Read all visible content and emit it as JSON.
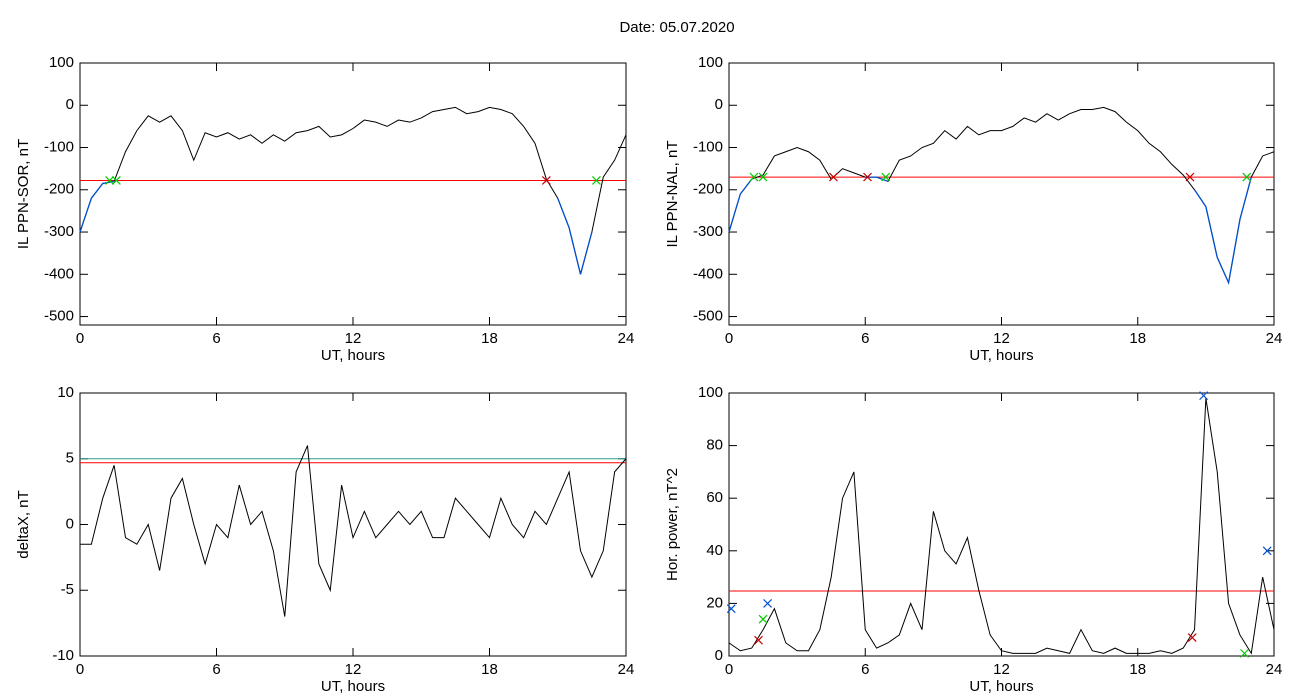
{
  "title": "Date:  05.07.2020",
  "chart_data": [
    {
      "type": "line",
      "xlabel": "UT, hours",
      "ylabel": "IL PPN-SOR, nT",
      "xlim": [
        0,
        24
      ],
      "xticks": [
        0,
        6,
        12,
        18,
        24
      ],
      "ylim": [
        -520,
        100
      ],
      "yticks": [
        100,
        0,
        -100,
        -200,
        -300,
        -400,
        -500
      ],
      "x": [
        0,
        0.5,
        1,
        1.5,
        2,
        2.5,
        3,
        3.5,
        4,
        4.5,
        5,
        5.5,
        6,
        6.5,
        7,
        7.5,
        8,
        8.5,
        9,
        9.5,
        10,
        10.5,
        11,
        11.5,
        12,
        12.5,
        13,
        13.5,
        14,
        14.5,
        15,
        15.5,
        16,
        16.5,
        17,
        17.5,
        18,
        18.5,
        19,
        19.5,
        20,
        20.5,
        21,
        21.5,
        22,
        22.5,
        23,
        23.5,
        24
      ],
      "series": [
        {
          "color": "#000000",
          "values": [
            -300,
            -220,
            -185,
            -180,
            -110,
            -60,
            -25,
            -40,
            -25,
            -60,
            -130,
            -65,
            -75,
            -65,
            -80,
            -70,
            -90,
            -70,
            -85,
            -65,
            -60,
            -50,
            -75,
            -70,
            -55,
            -35,
            -40,
            -50,
            -35,
            -40,
            -30,
            -15,
            -10,
            -5,
            -20,
            -15,
            -5,
            -10,
            -20,
            -50,
            -90,
            -175,
            -220,
            -290,
            -400,
            -300,
            -170,
            -130,
            -70
          ]
        }
      ],
      "threshold": {
        "value": -178,
        "color": "#ff0000",
        "below_color": "#0050d0"
      },
      "hlines": [
        {
          "value": -178,
          "color": "#ff0000"
        }
      ],
      "markers": [
        {
          "x": 1.3,
          "y": -178,
          "color": "#00cc00"
        },
        {
          "x": 1.6,
          "y": -178,
          "color": "#00cc00"
        },
        {
          "x": 20.5,
          "y": -178,
          "color": "#cc0000"
        },
        {
          "x": 22.7,
          "y": -178,
          "color": "#00cc00"
        }
      ]
    },
    {
      "type": "line",
      "xlabel": "UT, hours",
      "ylabel": "IL PPN-NAL, nT",
      "xlim": [
        0,
        24
      ],
      "xticks": [
        0,
        6,
        12,
        18,
        24
      ],
      "ylim": [
        -520,
        100
      ],
      "yticks": [
        100,
        0,
        -100,
        -200,
        -300,
        -400,
        -500
      ],
      "x": [
        0,
        0.5,
        1,
        1.5,
        2,
        2.5,
        3,
        3.5,
        4,
        4.5,
        5,
        5.5,
        6,
        6.5,
        7,
        7.5,
        8,
        8.5,
        9,
        9.5,
        10,
        10.5,
        11,
        11.5,
        12,
        12.5,
        13,
        13.5,
        14,
        14.5,
        15,
        15.5,
        16,
        16.5,
        17,
        17.5,
        18,
        18.5,
        19,
        19.5,
        20,
        20.5,
        21,
        21.5,
        22,
        22.5,
        23,
        23.5,
        24
      ],
      "series": [
        {
          "color": "#000000",
          "values": [
            -300,
            -210,
            -175,
            -165,
            -120,
            -110,
            -100,
            -110,
            -130,
            -175,
            -150,
            -160,
            -170,
            -170,
            -180,
            -130,
            -120,
            -100,
            -90,
            -60,
            -80,
            -50,
            -70,
            -60,
            -60,
            -50,
            -30,
            -40,
            -20,
            -35,
            -20,
            -10,
            -10,
            -5,
            -15,
            -40,
            -60,
            -90,
            -110,
            -140,
            -165,
            -200,
            -240,
            -360,
            -420,
            -270,
            -170,
            -120,
            -110
          ]
        }
      ],
      "threshold": {
        "value": -170,
        "color": "#ff0000",
        "below_color": "#0050d0"
      },
      "hlines": [
        {
          "value": -170,
          "color": "#ff0000"
        }
      ],
      "markers": [
        {
          "x": 1.1,
          "y": -170,
          "color": "#00cc00"
        },
        {
          "x": 1.5,
          "y": -170,
          "color": "#00cc00"
        },
        {
          "x": 4.6,
          "y": -170,
          "color": "#cc0000"
        },
        {
          "x": 6.1,
          "y": -170,
          "color": "#cc0000"
        },
        {
          "x": 6.9,
          "y": -170,
          "color": "#00cc00"
        },
        {
          "x": 20.3,
          "y": -170,
          "color": "#cc0000"
        },
        {
          "x": 22.8,
          "y": -170,
          "color": "#00cc00"
        }
      ]
    },
    {
      "type": "line",
      "xlabel": "UT, hours",
      "ylabel": "deltaX, nT",
      "xlim": [
        0,
        24
      ],
      "xticks": [
        0,
        6,
        12,
        18,
        24
      ],
      "ylim": [
        -10,
        10
      ],
      "yticks": [
        10,
        5,
        0,
        -5,
        -10
      ],
      "x": [
        0,
        0.5,
        1,
        1.5,
        2,
        2.5,
        3,
        3.5,
        4,
        4.5,
        5,
        5.5,
        6,
        6.5,
        7,
        7.5,
        8,
        8.5,
        9,
        9.5,
        10,
        10.5,
        11,
        11.5,
        12,
        12.5,
        13,
        13.5,
        14,
        14.5,
        15,
        15.5,
        16,
        16.5,
        17,
        17.5,
        18,
        18.5,
        19,
        19.5,
        20,
        20.5,
        21,
        21.5,
        22,
        22.5,
        23,
        23.5,
        24
      ],
      "series": [
        {
          "color": "#000000",
          "values": [
            -1.5,
            -1.5,
            2,
            4.5,
            -1,
            -1.5,
            0,
            -3.5,
            2,
            3.5,
            0,
            -3,
            0,
            -1,
            3,
            0,
            1,
            -2,
            -7,
            4,
            6,
            -3,
            -5,
            3,
            -1,
            1,
            -1,
            0,
            1,
            0,
            1,
            -1,
            -1,
            2,
            1,
            0,
            -1,
            2,
            0,
            -1,
            1,
            0,
            2,
            4,
            -2,
            -4,
            -2,
            4,
            5
          ]
        }
      ],
      "hlines": [
        {
          "value": 5,
          "color": "#2a9d8f"
        },
        {
          "value": 4.7,
          "color": "#ff0000"
        }
      ],
      "markers": []
    },
    {
      "type": "line",
      "xlabel": "UT, hours",
      "ylabel": "Hor. power, nT^2",
      "xlim": [
        0,
        24
      ],
      "xticks": [
        0,
        6,
        12,
        18,
        24
      ],
      "ylim": [
        0,
        100
      ],
      "yticks": [
        0,
        20,
        40,
        60,
        80,
        100
      ],
      "x": [
        0,
        0.5,
        1,
        1.5,
        2,
        2.5,
        3,
        3.5,
        4,
        4.5,
        5,
        5.5,
        6,
        6.5,
        7,
        7.5,
        8,
        8.5,
        9,
        9.5,
        10,
        10.5,
        11,
        11.5,
        12,
        12.5,
        13,
        13.5,
        14,
        14.5,
        15,
        15.5,
        16,
        16.5,
        17,
        17.5,
        18,
        18.5,
        19,
        19.5,
        20,
        20.5,
        21,
        21.5,
        22,
        22.5,
        23,
        23.5,
        24
      ],
      "series": [
        {
          "color": "#000000",
          "values": [
            5,
            2,
            3,
            10,
            18,
            5,
            2,
            2,
            10,
            30,
            60,
            70,
            10,
            3,
            5,
            8,
            20,
            10,
            55,
            40,
            35,
            45,
            25,
            8,
            2,
            1,
            1,
            1,
            3,
            2,
            1,
            10,
            2,
            1,
            3,
            1,
            1,
            1,
            2,
            1,
            3,
            10,
            98,
            70,
            20,
            8,
            1,
            30,
            10
          ]
        }
      ],
      "hlines": [
        {
          "value": 24.7,
          "color": "#ff0000"
        }
      ],
      "markers": [
        {
          "x": 0.1,
          "y": 18,
          "color": "#0050d0"
        },
        {
          "x": 1.3,
          "y": 6,
          "color": "#cc0000"
        },
        {
          "x": 1.5,
          "y": 14,
          "color": "#00cc00"
        },
        {
          "x": 1.7,
          "y": 20,
          "color": "#0050d0"
        },
        {
          "x": 20.4,
          "y": 7,
          "color": "#cc0000"
        },
        {
          "x": 20.9,
          "y": 99,
          "color": "#0050d0"
        },
        {
          "x": 22.7,
          "y": 1,
          "color": "#00cc00"
        },
        {
          "x": 23.7,
          "y": 40,
          "color": "#0050d0"
        }
      ]
    }
  ]
}
